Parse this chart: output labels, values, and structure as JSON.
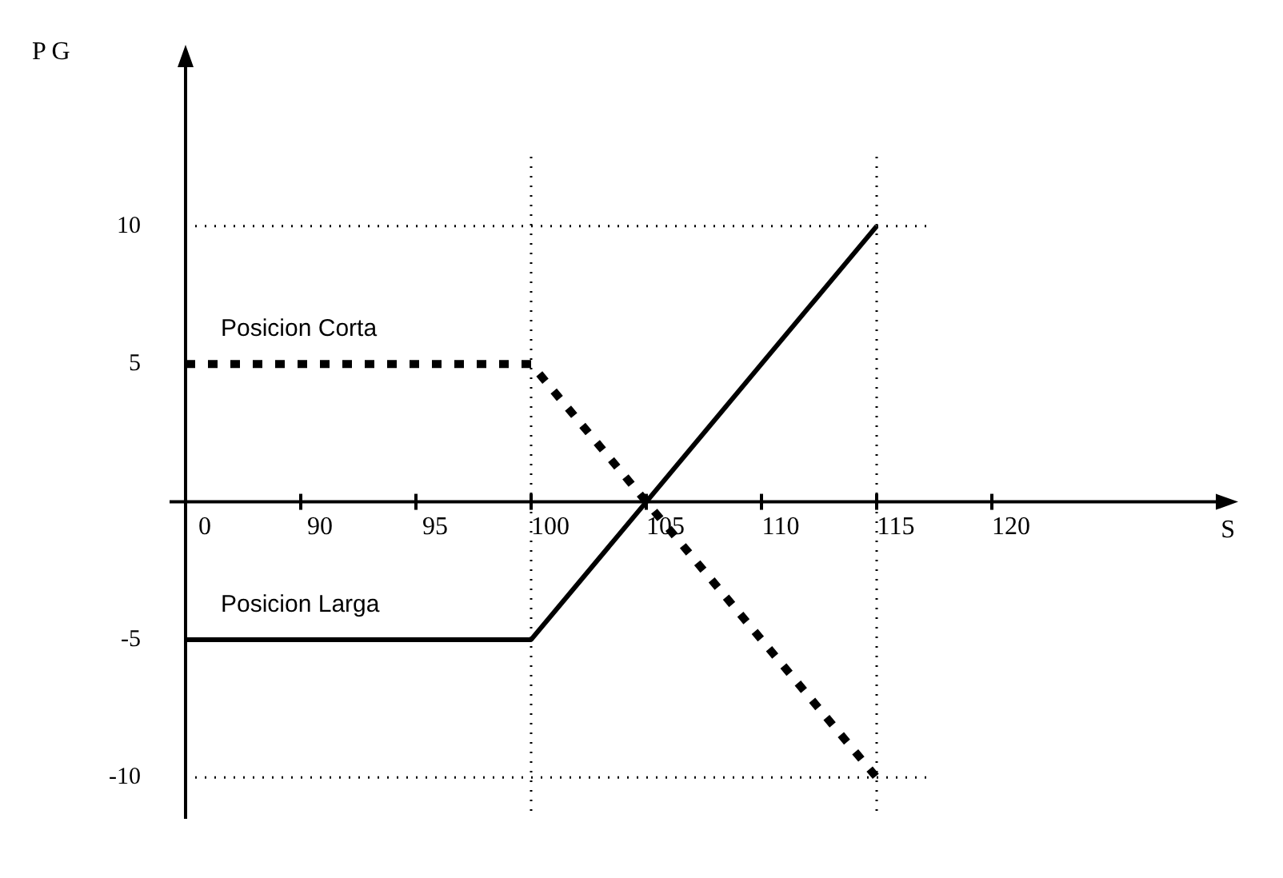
{
  "chart_data": {
    "type": "line",
    "xlabel": "S",
    "ylabel": "P G",
    "categories": [
      "0",
      "90",
      "95",
      "100",
      "105",
      "110",
      "115",
      "120",
      null,
      null
    ],
    "series": [
      {
        "name": "Posicion Corta",
        "color": "#000000",
        "line_style": "dashed",
        "values": [
          5,
          5,
          5,
          5,
          0,
          -5,
          -10,
          null,
          null,
          null
        ]
      },
      {
        "name": "Posicion Larga",
        "color": "#000000",
        "line_style": "solid",
        "values": [
          -5,
          -5,
          -5,
          -5,
          0,
          5,
          10,
          null,
          null,
          null
        ]
      }
    ],
    "ylim": [
      -11.5,
      16
    ],
    "yticks": [
      -10,
      -5,
      5,
      10
    ],
    "grid": false,
    "legend": false,
    "marker": "none",
    "ref_lines": [
      {
        "axis": "x",
        "value": "100",
        "line_style": "dotted",
        "color": "#000000"
      },
      {
        "axis": "x",
        "value": "115",
        "line_style": "dotted",
        "color": "#000000"
      },
      {
        "axis": "y",
        "value": 10,
        "line_style": "dotted",
        "color": "#000000"
      },
      {
        "axis": "y",
        "value": -10,
        "line_style": "dotted",
        "color": "#000000"
      }
    ]
  }
}
